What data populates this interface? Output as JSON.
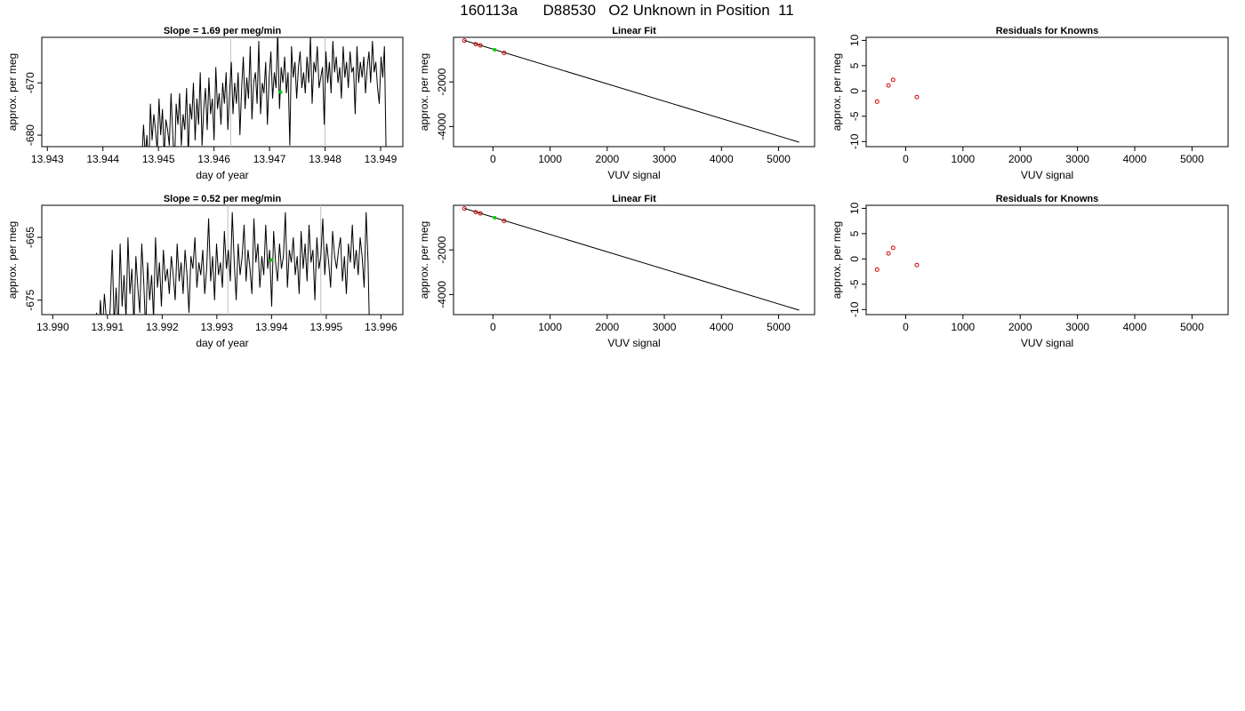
{
  "page_title": "160113a      D88530   O2 Unknown in Position  11",
  "colors": {
    "trace": "#000000",
    "known_points": "#cc0000",
    "unknown_point": "#00cc00",
    "marker_lines": "#bfbfbf",
    "frame": "#000000"
  },
  "chart_data": [
    {
      "type": "line",
      "title": "Slope =  1.69  per meg/min",
      "xlabel": "day of year",
      "ylabel": "approx. per meg",
      "xlim": [
        13.9429,
        13.9494
      ],
      "ylim": [
        -682.2,
        -661.3
      ],
      "x_ticks": [
        13.943,
        13.944,
        13.945,
        13.946,
        13.947,
        13.948,
        13.949
      ],
      "x_tick_labels": [
        "13.943",
        "13.944",
        "13.945",
        "13.946",
        "13.947",
        "13.948",
        "13.949"
      ],
      "y_ticks": [
        -680,
        -670
      ],
      "y_tick_labels": [
        "-680",
        "-670"
      ],
      "marker_lines_x": [
        13.9463,
        13.948
      ],
      "trace_x_range": [
        13.9447,
        13.9491
      ],
      "trace_y_values": [
        -685,
        -678,
        -684,
        -680,
        -688,
        -674,
        -681,
        -676,
        -679,
        -683,
        -673,
        -680,
        -675,
        -684,
        -677,
        -679,
        -682,
        -672,
        -680,
        -686,
        -674,
        -678,
        -672,
        -682,
        -676,
        -679,
        -671,
        -684,
        -674,
        -677,
        -670,
        -681,
        -673,
        -678,
        -668,
        -682,
        -675,
        -671,
        -679,
        -669,
        -676,
        -673,
        -681,
        -667,
        -675,
        -672,
        -678,
        -670,
        -674,
        -668,
        -679,
        -672,
        -666,
        -676,
        -670,
        -674,
        -668,
        -680,
        -671,
        -665,
        -675,
        -669,
        -673,
        -663,
        -677,
        -670,
        -668,
        -674,
        -662,
        -676,
        -670,
        -672,
        -666,
        -678,
        -669,
        -664,
        -673,
        -668,
        -671,
        -660,
        -675,
        -667,
        -670,
        -665,
        -672,
        -668,
        -682,
        -663,
        -669,
        -666,
        -673,
        -667,
        -664,
        -671,
        -668,
        -672,
        -665,
        -670,
        -661,
        -674,
        -666,
        -668,
        -663,
        -671,
        -669,
        -667,
        -678,
        -664,
        -670,
        -666,
        -672,
        -662,
        -668,
        -665,
        -670,
        -667,
        -673,
        -663,
        -669,
        -666,
        -671,
        -664,
        -668,
        -667,
        -676,
        -663,
        -670,
        -666,
        -669,
        -665,
        -672,
        -667,
        -664,
        -670,
        -662,
        -668,
        -666,
        -671,
        -674,
        -665,
        -669,
        -663,
        -685
      ],
      "unknown_point": {
        "x": 13.9472,
        "y": -671.8
      }
    },
    {
      "type": "scatter",
      "title": "Linear Fit",
      "xlabel": "VUV signal",
      "ylabel": "approx. per meg",
      "xlim": [
        -690,
        5630
      ],
      "ylim": [
        -4900,
        0
      ],
      "x_ticks": [
        0,
        1000,
        2000,
        3000,
        4000,
        5000
      ],
      "x_tick_labels": [
        "0",
        "1000",
        "2000",
        "3000",
        "4000",
        "5000"
      ],
      "y_ticks": [
        -4000,
        -2000
      ],
      "y_tick_labels": [
        "-4000",
        "-2000"
      ],
      "fit_line": {
        "x": [
          -500,
          5360
        ],
        "y": [
          -140,
          -4700
        ]
      },
      "known_points": {
        "x": [
          -500,
          -300,
          -220,
          195
        ],
        "y": [
          -145,
          -310,
          -365,
          -700
        ]
      },
      "unknown_point": {
        "x": 30,
        "y": -560
      }
    },
    {
      "type": "scatter",
      "title": "Residuals for Knowns",
      "xlabel": "VUV signal",
      "ylabel": "approx. per meg",
      "xlim": [
        -690,
        5630
      ],
      "ylim": [
        -11,
        10.6
      ],
      "x_ticks": [
        0,
        1000,
        2000,
        3000,
        4000,
        5000
      ],
      "x_tick_labels": [
        "0",
        "1000",
        "2000",
        "3000",
        "4000",
        "5000"
      ],
      "y_ticks": [
        -10,
        -5,
        0,
        5,
        10
      ],
      "y_tick_labels": [
        "-10",
        "-5",
        "0",
        "5",
        "10"
      ],
      "known_points": {
        "x": [
          -500,
          -300,
          -220,
          195
        ],
        "y": [
          -2.1,
          1.1,
          2.2,
          -1.2
        ]
      }
    },
    {
      "type": "line",
      "title": "Slope =  0.52  per meg/min",
      "xlabel": "day of year",
      "ylabel": "approx. per meg",
      "xlim": [
        13.9898,
        13.9964
      ],
      "ylim": [
        -677.3,
        -659.9
      ],
      "x_ticks": [
        13.99,
        13.991,
        13.992,
        13.993,
        13.994,
        13.995,
        13.996
      ],
      "x_tick_labels": [
        "13.990",
        "13.991",
        "13.992",
        "13.993",
        "13.994",
        "13.995",
        "13.996"
      ],
      "y_ticks": [
        -675,
        -665
      ],
      "y_tick_labels": [
        "-675",
        "-665"
      ],
      "marker_lines_x": [
        13.9932,
        13.9949
      ],
      "trace_x_range": [
        13.9908,
        13.9958
      ],
      "trace_y_values": [
        -677,
        -682,
        -675,
        -680,
        -674,
        -678,
        -681,
        -676,
        -667,
        -679,
        -673,
        -680,
        -666,
        -676,
        -671,
        -678,
        -665,
        -674,
        -670,
        -679,
        -668,
        -673,
        -677,
        -666,
        -672,
        -680,
        -669,
        -675,
        -671,
        -678,
        -665,
        -673,
        -669,
        -676,
        -667,
        -672,
        -670,
        -674,
        -668,
        -671,
        -675,
        -666,
        -672,
        -669,
        -674,
        -667,
        -671,
        -677,
        -668,
        -670,
        -665,
        -673,
        -669,
        -671,
        -667,
        -674,
        -670,
        -662,
        -672,
        -668,
        -675,
        -666,
        -671,
        -669,
        -673,
        -664,
        -670,
        -667,
        -672,
        -661,
        -669,
        -675,
        -666,
        -671,
        -668,
        -663,
        -672,
        -667,
        -670,
        -674,
        -662,
        -669,
        -666,
        -673,
        -668,
        -671,
        -663,
        -670,
        -667,
        -676,
        -664,
        -669,
        -672,
        -666,
        -670,
        -668,
        -661,
        -673,
        -667,
        -669,
        -665,
        -671,
        -668,
        -674,
        -664,
        -670,
        -666,
        -672,
        -663,
        -669,
        -667,
        -675,
        -665,
        -670,
        -668,
        -662,
        -671,
        -666,
        -669,
        -673,
        -664,
        -668,
        -670,
        -667,
        -665,
        -672,
        -668,
        -674,
        -666,
        -669,
        -663,
        -670,
        -667,
        -671,
        -665,
        -668,
        -673,
        -661,
        -669,
        -684
      ],
      "unknown_point": {
        "x": 13.994,
        "y": -668.6
      }
    },
    {
      "type": "scatter",
      "title": "Linear Fit",
      "xlabel": "VUV signal",
      "ylabel": "approx. per meg",
      "xlim": [
        -690,
        5630
      ],
      "ylim": [
        -4900,
        0
      ],
      "x_ticks": [
        0,
        1000,
        2000,
        3000,
        4000,
        5000
      ],
      "x_tick_labels": [
        "0",
        "1000",
        "2000",
        "3000",
        "4000",
        "5000"
      ],
      "y_ticks": [
        -4000,
        -2000
      ],
      "y_tick_labels": [
        "-4000",
        "-2000"
      ],
      "fit_line": {
        "x": [
          -500,
          5360
        ],
        "y": [
          -140,
          -4700
        ]
      },
      "known_points": {
        "x": [
          -500,
          -300,
          -220,
          195
        ],
        "y": [
          -145,
          -310,
          -365,
          -700
        ]
      },
      "unknown_point": {
        "x": 30,
        "y": -560
      }
    },
    {
      "type": "scatter",
      "title": "Residuals for Knowns",
      "xlabel": "VUV signal",
      "ylabel": "approx. per meg",
      "xlim": [
        -690,
        5630
      ],
      "ylim": [
        -11,
        10.6
      ],
      "x_ticks": [
        0,
        1000,
        2000,
        3000,
        4000,
        5000
      ],
      "x_tick_labels": [
        "0",
        "1000",
        "2000",
        "3000",
        "4000",
        "5000"
      ],
      "y_ticks": [
        -10,
        -5,
        0,
        5,
        10
      ],
      "y_tick_labels": [
        "-10",
        "-5",
        "0",
        "5",
        "10"
      ],
      "known_points": {
        "x": [
          -500,
          -300,
          -220,
          195
        ],
        "y": [
          -2.1,
          1.1,
          2.2,
          -1.2
        ]
      }
    }
  ]
}
